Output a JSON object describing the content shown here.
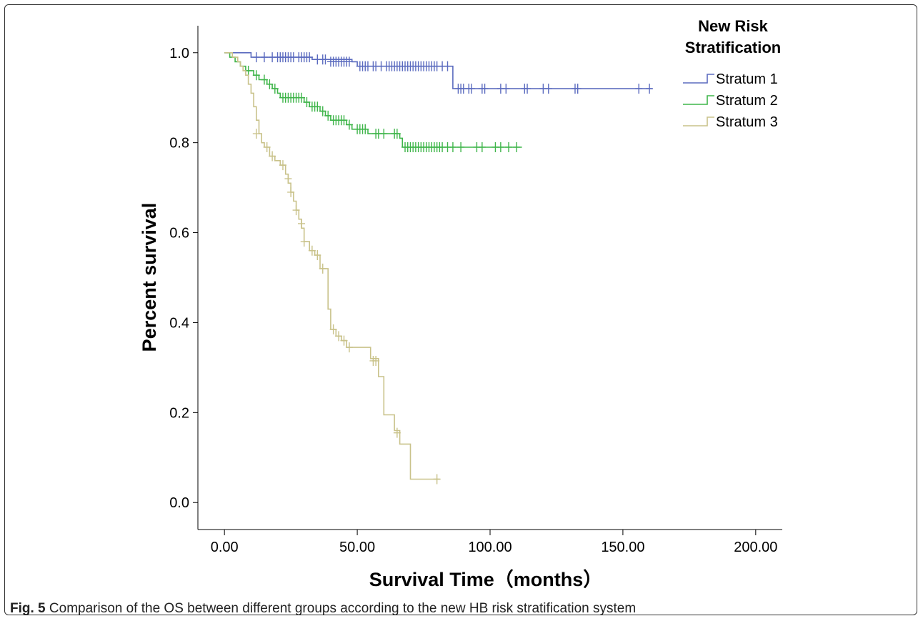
{
  "caption": {
    "label": "Fig. 5",
    "text": "Comparison of the OS between different groups according to the new HB risk stratification system"
  },
  "chart_data": {
    "type": "line",
    "title": "",
    "xlabel": "Survival Time（months）",
    "ylabel": "Percent survival",
    "xlim": [
      -10,
      210
    ],
    "ylim": [
      -0.06,
      1.06
    ],
    "xticks": [
      0,
      50,
      100,
      150,
      200
    ],
    "xtick_labels": [
      "0.00",
      "50.00",
      "100.00",
      "150.00",
      "200.00"
    ],
    "yticks": [
      0,
      0.2,
      0.4,
      0.6,
      0.8,
      1.0
    ],
    "ytick_labels": [
      "0.0",
      "0.2",
      "0.4",
      "0.6",
      "0.8",
      "1.0"
    ],
    "grid": false,
    "legend_title": "New Risk Stratification",
    "legend_position": "top-right",
    "series": [
      {
        "name": "Stratum 1",
        "color": "#5b6bbf",
        "steps": [
          [
            0,
            1.0
          ],
          [
            10,
            0.99
          ],
          [
            33,
            0.985
          ],
          [
            48,
            0.98
          ],
          [
            50,
            0.97
          ],
          [
            86,
            0.92
          ],
          [
            161,
            0.92
          ]
        ],
        "censored": [
          [
            12,
            0.99
          ],
          [
            15,
            0.99
          ],
          [
            18,
            0.99
          ],
          [
            20,
            0.99
          ],
          [
            21,
            0.99
          ],
          [
            22,
            0.99
          ],
          [
            23,
            0.99
          ],
          [
            24,
            0.99
          ],
          [
            25,
            0.99
          ],
          [
            26,
            0.99
          ],
          [
            28,
            0.99
          ],
          [
            29,
            0.99
          ],
          [
            30,
            0.99
          ],
          [
            31,
            0.99
          ],
          [
            32,
            0.99
          ],
          [
            35,
            0.985
          ],
          [
            37,
            0.985
          ],
          [
            38,
            0.985
          ],
          [
            40,
            0.98
          ],
          [
            41,
            0.98
          ],
          [
            42,
            0.98
          ],
          [
            43,
            0.98
          ],
          [
            44,
            0.98
          ],
          [
            45,
            0.98
          ],
          [
            46,
            0.98
          ],
          [
            47,
            0.98
          ],
          [
            51,
            0.97
          ],
          [
            52,
            0.97
          ],
          [
            53,
            0.97
          ],
          [
            54,
            0.97
          ],
          [
            56,
            0.97
          ],
          [
            57,
            0.97
          ],
          [
            59,
            0.97
          ],
          [
            61,
            0.97
          ],
          [
            62,
            0.97
          ],
          [
            63,
            0.97
          ],
          [
            64,
            0.97
          ],
          [
            65,
            0.97
          ],
          [
            66,
            0.97
          ],
          [
            67,
            0.97
          ],
          [
            68,
            0.97
          ],
          [
            69,
            0.97
          ],
          [
            70,
            0.97
          ],
          [
            71,
            0.97
          ],
          [
            72,
            0.97
          ],
          [
            73,
            0.97
          ],
          [
            74,
            0.97
          ],
          [
            75,
            0.97
          ],
          [
            76,
            0.97
          ],
          [
            77,
            0.97
          ],
          [
            78,
            0.97
          ],
          [
            79,
            0.97
          ],
          [
            80,
            0.97
          ],
          [
            82,
            0.97
          ],
          [
            84,
            0.97
          ],
          [
            88,
            0.92
          ],
          [
            89,
            0.92
          ],
          [
            90,
            0.92
          ],
          [
            92,
            0.92
          ],
          [
            93,
            0.92
          ],
          [
            97,
            0.92
          ],
          [
            98,
            0.92
          ],
          [
            104,
            0.92
          ],
          [
            106,
            0.92
          ],
          [
            113,
            0.92
          ],
          [
            114,
            0.92
          ],
          [
            120,
            0.92
          ],
          [
            122,
            0.92
          ],
          [
            132,
            0.92
          ],
          [
            133,
            0.92
          ],
          [
            156,
            0.92
          ],
          [
            160,
            0.92
          ]
        ]
      },
      {
        "name": "Stratum 2",
        "color": "#3fb54a",
        "steps": [
          [
            0,
            1.0
          ],
          [
            2,
            0.99
          ],
          [
            4,
            0.98
          ],
          [
            6,
            0.97
          ],
          [
            8,
            0.96
          ],
          [
            11,
            0.95
          ],
          [
            13,
            0.94
          ],
          [
            16,
            0.93
          ],
          [
            18,
            0.92
          ],
          [
            20,
            0.91
          ],
          [
            21,
            0.9
          ],
          [
            30,
            0.89
          ],
          [
            32,
            0.88
          ],
          [
            36,
            0.87
          ],
          [
            38,
            0.86
          ],
          [
            40,
            0.85
          ],
          [
            46,
            0.84
          ],
          [
            48,
            0.83
          ],
          [
            54,
            0.82
          ],
          [
            66,
            0.81
          ],
          [
            67,
            0.79
          ],
          [
            112,
            0.79
          ]
        ],
        "censored": [
          [
            9,
            0.96
          ],
          [
            12,
            0.95
          ],
          [
            15,
            0.94
          ],
          [
            17,
            0.93
          ],
          [
            19,
            0.92
          ],
          [
            22,
            0.9
          ],
          [
            23,
            0.9
          ],
          [
            24,
            0.9
          ],
          [
            25,
            0.9
          ],
          [
            26,
            0.9
          ],
          [
            27,
            0.9
          ],
          [
            28,
            0.9
          ],
          [
            29,
            0.9
          ],
          [
            31,
            0.89
          ],
          [
            33,
            0.88
          ],
          [
            34,
            0.88
          ],
          [
            35,
            0.88
          ],
          [
            37,
            0.87
          ],
          [
            39,
            0.86
          ],
          [
            41,
            0.85
          ],
          [
            42,
            0.85
          ],
          [
            43,
            0.85
          ],
          [
            44,
            0.85
          ],
          [
            45,
            0.85
          ],
          [
            47,
            0.84
          ],
          [
            50,
            0.83
          ],
          [
            51,
            0.83
          ],
          [
            52,
            0.83
          ],
          [
            53,
            0.83
          ],
          [
            57,
            0.82
          ],
          [
            58,
            0.82
          ],
          [
            60,
            0.82
          ],
          [
            64,
            0.82
          ],
          [
            65,
            0.82
          ],
          [
            68,
            0.79
          ],
          [
            69,
            0.79
          ],
          [
            70,
            0.79
          ],
          [
            71,
            0.79
          ],
          [
            72,
            0.79
          ],
          [
            73,
            0.79
          ],
          [
            74,
            0.79
          ],
          [
            75,
            0.79
          ],
          [
            76,
            0.79
          ],
          [
            77,
            0.79
          ],
          [
            78,
            0.79
          ],
          [
            79,
            0.79
          ],
          [
            80,
            0.79
          ],
          [
            81,
            0.79
          ],
          [
            82,
            0.79
          ],
          [
            84,
            0.79
          ],
          [
            86,
            0.79
          ],
          [
            89,
            0.79
          ],
          [
            95,
            0.79
          ],
          [
            97,
            0.79
          ],
          [
            102,
            0.79
          ],
          [
            104,
            0.79
          ],
          [
            107,
            0.79
          ],
          [
            110,
            0.79
          ]
        ]
      },
      {
        "name": "Stratum 3",
        "color": "#c9c28a",
        "steps": [
          [
            0,
            1.0
          ],
          [
            3,
            0.99
          ],
          [
            5,
            0.98
          ],
          [
            6,
            0.97
          ],
          [
            7,
            0.96
          ],
          [
            8,
            0.95
          ],
          [
            9,
            0.93
          ],
          [
            10,
            0.91
          ],
          [
            11,
            0.88
          ],
          [
            12,
            0.85
          ],
          [
            13,
            0.82
          ],
          [
            14,
            0.8
          ],
          [
            15,
            0.79
          ],
          [
            17,
            0.77
          ],
          [
            19,
            0.76
          ],
          [
            21,
            0.75
          ],
          [
            23,
            0.73
          ],
          [
            24,
            0.71
          ],
          [
            25,
            0.69
          ],
          [
            26,
            0.67
          ],
          [
            27,
            0.65
          ],
          [
            28,
            0.63
          ],
          [
            29,
            0.61
          ],
          [
            30,
            0.58
          ],
          [
            32,
            0.56
          ],
          [
            34,
            0.55
          ],
          [
            36,
            0.52
          ],
          [
            39,
            0.43
          ],
          [
            40,
            0.385
          ],
          [
            42,
            0.37
          ],
          [
            44,
            0.36
          ],
          [
            46,
            0.345
          ],
          [
            55,
            0.32
          ],
          [
            58,
            0.28
          ],
          [
            60,
            0.195
          ],
          [
            64,
            0.16
          ],
          [
            66,
            0.13
          ],
          [
            70,
            0.052
          ],
          [
            81,
            0.052
          ]
        ],
        "censored": [
          [
            12,
            0.82
          ],
          [
            16,
            0.79
          ],
          [
            18,
            0.77
          ],
          [
            22,
            0.75
          ],
          [
            24,
            0.72
          ],
          [
            25,
            0.69
          ],
          [
            27,
            0.65
          ],
          [
            29,
            0.62
          ],
          [
            30,
            0.58
          ],
          [
            33,
            0.56
          ],
          [
            35,
            0.55
          ],
          [
            37,
            0.52
          ],
          [
            41,
            0.385
          ],
          [
            43,
            0.37
          ],
          [
            45,
            0.36
          ],
          [
            47,
            0.345
          ],
          [
            56,
            0.315
          ],
          [
            57,
            0.315
          ],
          [
            65,
            0.155
          ],
          [
            80,
            0.052
          ]
        ]
      }
    ]
  }
}
